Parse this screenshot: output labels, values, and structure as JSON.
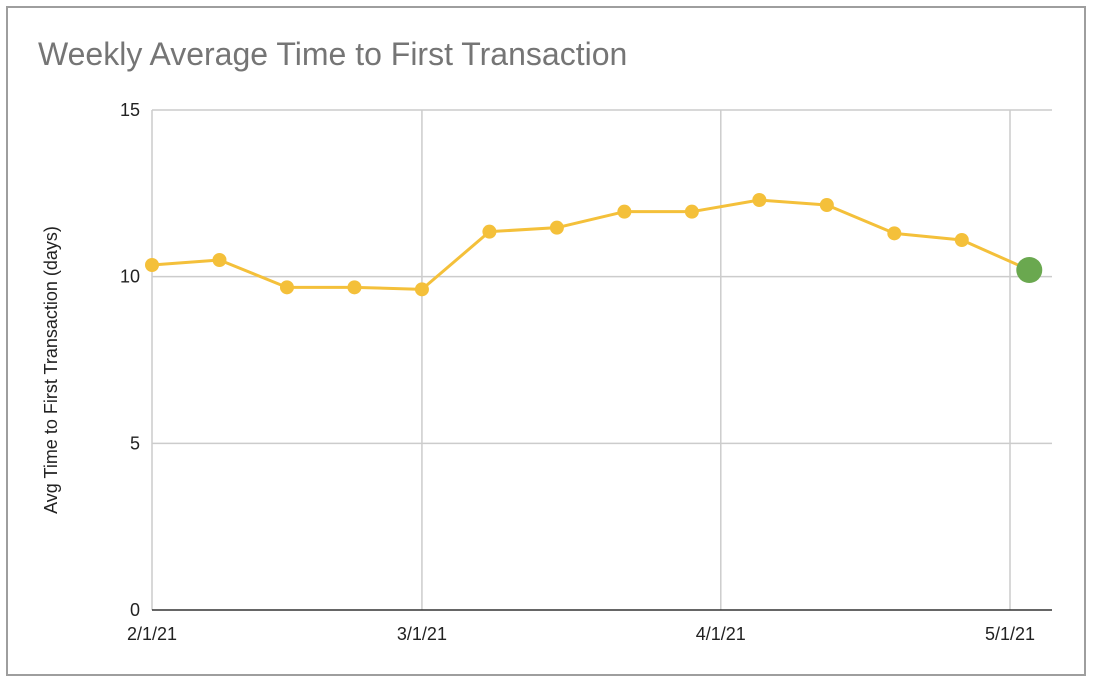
{
  "chart_data": {
    "type": "line",
    "title": "Weekly Average Time to First Transaction",
    "xlabel": "",
    "ylabel": "Avg Time to First Transaction (days)",
    "ylim": [
      0,
      15
    ],
    "y_ticks": [
      "0",
      "5",
      "10",
      "15"
    ],
    "x_tick_labels": [
      "2/1/21",
      "3/1/21",
      "4/1/21",
      "5/1/21"
    ],
    "x_tick_dates": [
      "2021-02-01",
      "2021-03-01",
      "2021-04-01",
      "2021-05-01"
    ],
    "grid": true,
    "series": [
      {
        "color": "#f4c03a",
        "x": [
          "2021-02-01",
          "2021-02-08",
          "2021-02-15",
          "2021-02-22",
          "2021-03-01",
          "2021-03-08",
          "2021-03-15",
          "2021-03-22",
          "2021-03-29",
          "2021-04-05",
          "2021-04-12",
          "2021-04-19",
          "2021-04-26",
          "2021-05-03"
        ],
        "y": [
          10.35,
          10.5,
          9.68,
          9.68,
          9.62,
          11.35,
          11.47,
          11.95,
          11.95,
          12.3,
          12.15,
          11.3,
          11.1,
          10.2
        ]
      }
    ],
    "highlight_point": {
      "x": "2021-05-03",
      "y": 10.2,
      "color": "#6aa84f"
    }
  }
}
